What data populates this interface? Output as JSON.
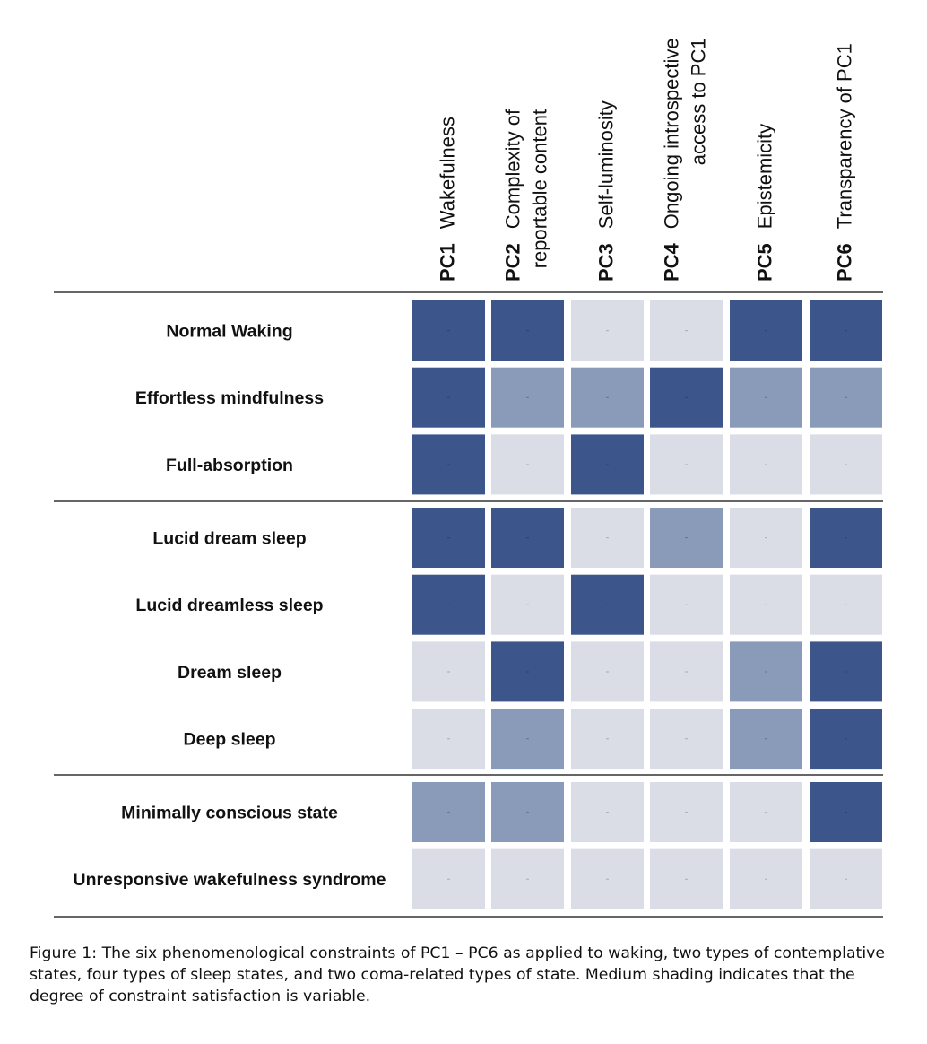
{
  "chart_data": {
    "type": "heatmap",
    "columns": [
      {
        "code": "PC1",
        "label_lines": [
          "Wakefulness"
        ]
      },
      {
        "code": "PC2",
        "label_lines": [
          "Complexity of",
          "reportable content"
        ]
      },
      {
        "code": "PC3",
        "label_lines": [
          "Self-luminosity"
        ]
      },
      {
        "code": "PC4",
        "label_lines": [
          "Ongoing introspective",
          "access to PC1"
        ]
      },
      {
        "code": "PC5",
        "label_lines": [
          "Epistemicity"
        ]
      },
      {
        "code": "PC6",
        "label_lines": [
          "Transparency of PC1"
        ]
      }
    ],
    "rows": [
      {
        "label": "Normal Waking",
        "group": 0,
        "values": [
          2,
          2,
          0,
          0,
          2,
          2
        ]
      },
      {
        "label": "Effortless mindfulness",
        "group": 0,
        "values": [
          2,
          1,
          1,
          2,
          1,
          1
        ]
      },
      {
        "label": "Full-absorption",
        "group": 0,
        "values": [
          2,
          0,
          2,
          0,
          0,
          0
        ]
      },
      {
        "label": "Lucid dream sleep",
        "group": 1,
        "values": [
          2,
          2,
          0,
          1,
          0,
          2
        ]
      },
      {
        "label": "Lucid dreamless sleep",
        "group": 1,
        "values": [
          2,
          0,
          2,
          0,
          0,
          0
        ]
      },
      {
        "label": "Dream sleep",
        "group": 1,
        "values": [
          0,
          2,
          0,
          0,
          1,
          2
        ]
      },
      {
        "label": "Deep sleep",
        "group": 1,
        "values": [
          0,
          1,
          0,
          0,
          1,
          2
        ]
      },
      {
        "label": "Minimally conscious state",
        "group": 2,
        "values": [
          1,
          1,
          0,
          0,
          0,
          2
        ]
      },
      {
        "label": "Unresponsive wakefulness syndrome",
        "group": 2,
        "values": [
          0,
          0,
          0,
          0,
          0,
          0
        ]
      }
    ],
    "colors": [
      "#dadde6",
      "#8a9ab9",
      "#3c568b"
    ],
    "marker_colors": [
      "#aeb3bf",
      "#68789a",
      "#2f4573"
    ]
  },
  "caption": "Figure 1: The six phenomenological constraints of PC1 – PC6 as applied to waking, two types of contemplative states, four types of sleep states, and two coma-related types of state. Medium shading indicates that the degree of constraint satisfaction is variable."
}
